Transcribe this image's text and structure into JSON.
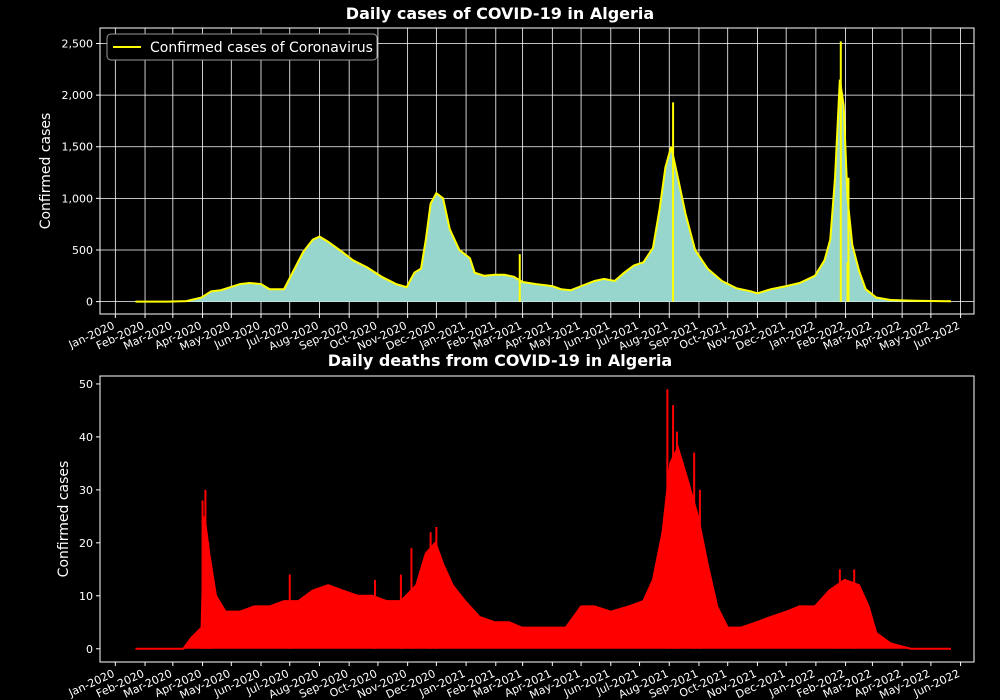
{
  "chart_data": [
    {
      "type": "area",
      "title": "Daily cases of COVID-19 in Algeria",
      "xlabel": "",
      "ylabel": "Confirmed cases",
      "ylim": [
        -120,
        2650
      ],
      "xlim": [
        "2019-12-16",
        "2022-06-15"
      ],
      "y_ticks": [
        0,
        500,
        1000,
        1500,
        2000,
        2500
      ],
      "y_tick_labels": [
        "0",
        "500",
        "1,000",
        "1,500",
        "2,000",
        "2,500"
      ],
      "grid": true,
      "legend": {
        "position": "top-left",
        "entries": [
          "Confirmed cases of Coronavirus"
        ]
      },
      "colors": {
        "line": "#ffff00",
        "fill": "#96d6cc",
        "background": "#000000",
        "grid": "#ffffff"
      },
      "series": [
        {
          "name": "Confirmed cases of Coronavirus",
          "points": [
            [
              "2020-01-22",
              0
            ],
            [
              "2020-02-25",
              0
            ],
            [
              "2020-03-15",
              5
            ],
            [
              "2020-03-31",
              40
            ],
            [
              "2020-04-10",
              100
            ],
            [
              "2020-04-20",
              110
            ],
            [
              "2020-04-30",
              140
            ],
            [
              "2020-05-10",
              170
            ],
            [
              "2020-05-20",
              180
            ],
            [
              "2020-06-01",
              170
            ],
            [
              "2020-06-10",
              120
            ],
            [
              "2020-06-25",
              120
            ],
            [
              "2020-07-05",
              300
            ],
            [
              "2020-07-15",
              480
            ],
            [
              "2020-07-25",
              600
            ],
            [
              "2020-08-01",
              630
            ],
            [
              "2020-08-10",
              580
            ],
            [
              "2020-08-25",
              480
            ],
            [
              "2020-09-05",
              400
            ],
            [
              "2020-09-20",
              330
            ],
            [
              "2020-10-05",
              240
            ],
            [
              "2020-10-20",
              170
            ],
            [
              "2020-10-31",
              140
            ],
            [
              "2020-11-08",
              280
            ],
            [
              "2020-11-15",
              320
            ],
            [
              "2020-11-20",
              600
            ],
            [
              "2020-11-25",
              950
            ],
            [
              "2020-12-01",
              1050
            ],
            [
              "2020-12-08",
              1000
            ],
            [
              "2020-12-15",
              700
            ],
            [
              "2020-12-25",
              500
            ],
            [
              "2021-01-05",
              420
            ],
            [
              "2021-01-10",
              280
            ],
            [
              "2021-01-20",
              250
            ],
            [
              "2021-01-31",
              260
            ],
            [
              "2021-02-10",
              260
            ],
            [
              "2021-02-20",
              240
            ],
            [
              "2021-03-01",
              190
            ],
            [
              "2021-03-15",
              170
            ],
            [
              "2021-04-01",
              150
            ],
            [
              "2021-04-10",
              120
            ],
            [
              "2021-04-20",
              110
            ],
            [
              "2021-05-01",
              150
            ],
            [
              "2021-05-15",
              200
            ],
            [
              "2021-05-25",
              220
            ],
            [
              "2021-06-05",
              200
            ],
            [
              "2021-06-15",
              280
            ],
            [
              "2021-06-25",
              350
            ],
            [
              "2021-07-05",
              380
            ],
            [
              "2021-07-15",
              520
            ],
            [
              "2021-07-22",
              900
            ],
            [
              "2021-07-28",
              1300
            ],
            [
              "2021-08-03",
              1500
            ],
            [
              "2021-08-10",
              1200
            ],
            [
              "2021-08-18",
              850
            ],
            [
              "2021-08-28",
              500
            ],
            [
              "2021-09-10",
              320
            ],
            [
              "2021-09-25",
              200
            ],
            [
              "2021-10-10",
              130
            ],
            [
              "2021-10-25",
              100
            ],
            [
              "2021-11-01",
              80
            ],
            [
              "2021-11-15",
              120
            ],
            [
              "2021-12-01",
              150
            ],
            [
              "2021-12-15",
              180
            ],
            [
              "2021-12-31",
              250
            ],
            [
              "2022-01-10",
              400
            ],
            [
              "2022-01-16",
              600
            ],
            [
              "2022-01-21",
              1200
            ],
            [
              "2022-01-26",
              2150
            ],
            [
              "2022-01-30",
              1900
            ],
            [
              "2022-02-03",
              1000
            ],
            [
              "2022-02-08",
              550
            ],
            [
              "2022-02-15",
              300
            ],
            [
              "2022-02-22",
              120
            ],
            [
              "2022-03-05",
              40
            ],
            [
              "2022-03-20",
              15
            ],
            [
              "2022-04-15",
              8
            ],
            [
              "2022-05-10",
              5
            ],
            [
              "2022-05-22",
              3
            ]
          ],
          "spikes": [
            [
              "2021-02-25",
              0
            ],
            [
              "2021-02-26",
              460
            ],
            [
              "2021-08-05",
              1930
            ],
            [
              "2022-01-27",
              2520
            ],
            [
              "2022-02-03",
              380
            ],
            [
              "2022-02-04",
              1200
            ]
          ]
        }
      ],
      "x_tick_labels": [
        "Jan-2020",
        "Feb-2020",
        "Mar-2020",
        "Apr-2020",
        "May-2020",
        "Jun-2020",
        "Jul-2020",
        "Aug-2020",
        "Sep-2020",
        "Oct-2020",
        "Nov-2020",
        "Dec-2020",
        "Jan-2021",
        "Feb-2021",
        "Mar-2021",
        "Apr-2021",
        "May-2021",
        "Jun-2021",
        "Jul-2021",
        "Aug-2021",
        "Sep-2021",
        "Oct-2021",
        "Nov-2021",
        "Dec-2021",
        "Jan-2022",
        "Feb-2022",
        "Mar-2022",
        "Apr-2022",
        "May-2022",
        "Jun-2022"
      ]
    },
    {
      "type": "area",
      "title": "Daily deaths from COVID-19 in Algeria",
      "xlabel": "",
      "ylabel": "Confirmed cases",
      "ylim": [
        -2.5,
        51.5
      ],
      "xlim": [
        "2019-12-16",
        "2022-06-15"
      ],
      "y_ticks": [
        0,
        10,
        20,
        30,
        40,
        50
      ],
      "y_tick_labels": [
        "0",
        "10",
        "20",
        "30",
        "40",
        "50"
      ],
      "grid": false,
      "colors": {
        "line": "#ff0000",
        "fill": "#ff0000",
        "background": "#000000"
      },
      "series": [
        {
          "name": "",
          "points": [
            [
              "2020-01-22",
              0
            ],
            [
              "2020-03-12",
              0
            ],
            [
              "2020-03-20",
              2
            ],
            [
              "2020-03-31",
              4
            ],
            [
              "2020-04-03",
              25
            ],
            [
              "2020-04-08",
              18
            ],
            [
              "2020-04-15",
              10
            ],
            [
              "2020-04-25",
              7
            ],
            [
              "2020-05-10",
              7
            ],
            [
              "2020-05-25",
              8
            ],
            [
              "2020-06-10",
              8
            ],
            [
              "2020-06-25",
              9
            ],
            [
              "2020-07-10",
              9
            ],
            [
              "2020-07-25",
              11
            ],
            [
              "2020-08-10",
              12
            ],
            [
              "2020-08-25",
              11
            ],
            [
              "2020-09-10",
              10
            ],
            [
              "2020-09-25",
              10
            ],
            [
              "2020-10-10",
              9
            ],
            [
              "2020-10-25",
              9
            ],
            [
              "2020-11-10",
              12
            ],
            [
              "2020-11-20",
              18
            ],
            [
              "2020-11-30",
              20
            ],
            [
              "2020-12-08",
              16
            ],
            [
              "2020-12-18",
              12
            ],
            [
              "2020-12-31",
              9
            ],
            [
              "2021-01-15",
              6
            ],
            [
              "2021-01-31",
              5
            ],
            [
              "2021-02-15",
              5
            ],
            [
              "2021-02-28",
              4
            ],
            [
              "2021-03-20",
              4
            ],
            [
              "2021-04-15",
              4
            ],
            [
              "2021-05-01",
              8
            ],
            [
              "2021-05-15",
              8
            ],
            [
              "2021-06-01",
              7
            ],
            [
              "2021-06-20",
              8
            ],
            [
              "2021-07-05",
              9
            ],
            [
              "2021-07-15",
              13
            ],
            [
              "2021-07-25",
              22
            ],
            [
              "2021-08-02",
              35
            ],
            [
              "2021-08-10",
              38
            ],
            [
              "2021-08-20",
              32
            ],
            [
              "2021-08-31",
              25
            ],
            [
              "2021-09-10",
              16
            ],
            [
              "2021-09-20",
              8
            ],
            [
              "2021-10-01",
              4
            ],
            [
              "2021-10-15",
              4
            ],
            [
              "2021-10-31",
              5
            ],
            [
              "2021-11-15",
              6
            ],
            [
              "2021-12-01",
              7
            ],
            [
              "2021-12-15",
              8
            ],
            [
              "2021-12-31",
              8
            ],
            [
              "2022-01-15",
              11
            ],
            [
              "2022-01-31",
              13
            ],
            [
              "2022-02-15",
              12
            ],
            [
              "2022-02-25",
              8
            ],
            [
              "2022-03-05",
              3
            ],
            [
              "2022-03-20",
              1
            ],
            [
              "2022-04-10",
              0
            ],
            [
              "2022-05-22",
              0
            ]
          ],
          "spikes": [
            [
              "2020-04-01",
              28
            ],
            [
              "2020-04-04",
              30
            ],
            [
              "2020-04-07",
              20
            ],
            [
              "2020-04-09",
              16
            ],
            [
              "2020-07-01",
              14
            ],
            [
              "2020-09-28",
              13
            ],
            [
              "2020-10-25",
              14
            ],
            [
              "2020-11-05",
              19
            ],
            [
              "2020-11-25",
              22
            ],
            [
              "2020-12-01",
              23
            ],
            [
              "2021-07-30",
              49
            ],
            [
              "2021-08-05",
              46
            ],
            [
              "2021-08-09",
              41
            ],
            [
              "2021-08-27",
              37
            ],
            [
              "2021-09-02",
              30
            ],
            [
              "2022-02-10",
              15
            ],
            [
              "2022-01-26",
              15
            ]
          ]
        }
      ],
      "x_tick_labels": [
        "Jan-2020",
        "Feb-2020",
        "Mar-2020",
        "Apr-2020",
        "May-2020",
        "Jun-2020",
        "Jul-2020",
        "Aug-2020",
        "Sep-2020",
        "Oct-2020",
        "Nov-2020",
        "Dec-2020",
        "Jan-2021",
        "Feb-2021",
        "Mar-2021",
        "Apr-2021",
        "May-2021",
        "Jun-2021",
        "Jul-2021",
        "Aug-2021",
        "Sep-2021",
        "Oct-2021",
        "Nov-2021",
        "Dec-2021",
        "Jan-2022",
        "Feb-2022",
        "Mar-2022",
        "Apr-2022",
        "May-2022",
        "Jun-2022"
      ]
    }
  ]
}
